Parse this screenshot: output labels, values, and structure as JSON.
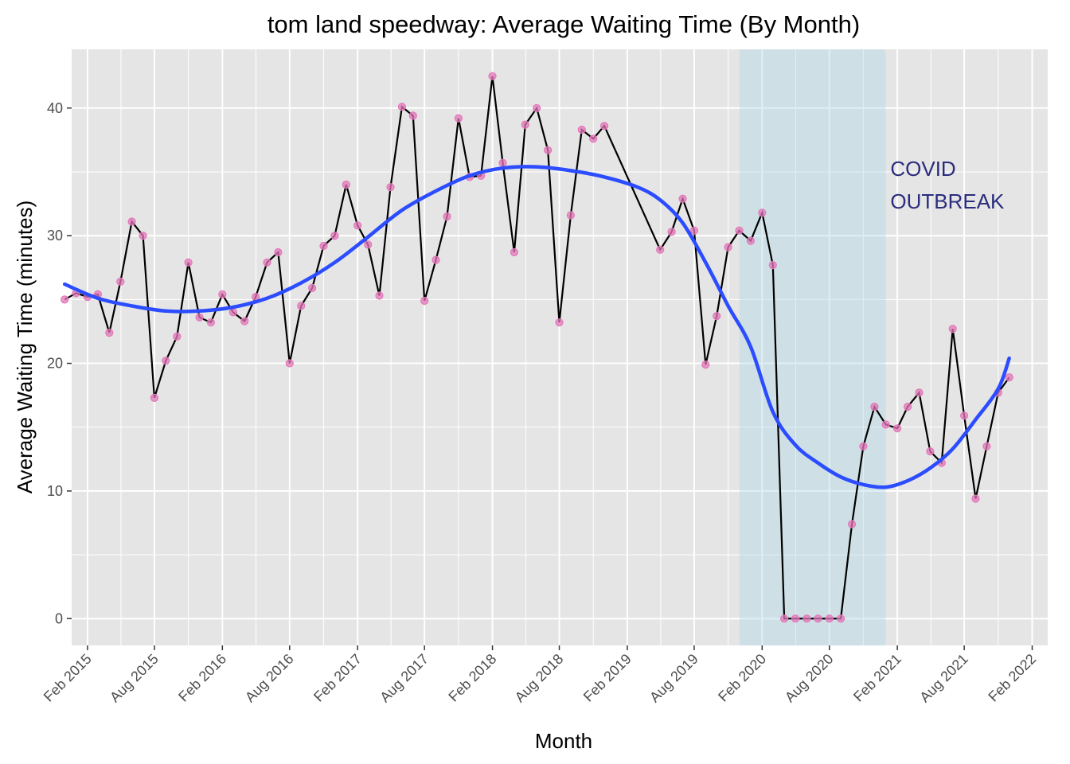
{
  "chart_data": {
    "type": "line",
    "title": "tom land speedway: Average Waiting Time (By Month)",
    "xlabel": "Month",
    "ylabel": "Average Waiting Time (minutes)",
    "x_tick_labels": [
      "Feb 2015",
      "Aug 2015",
      "Feb 2016",
      "Aug 2016",
      "Feb 2017",
      "Aug 2017",
      "Feb 2018",
      "Aug 2018",
      "Feb 2019",
      "Aug 2019",
      "Feb 2020",
      "Aug 2020",
      "Feb 2021",
      "Aug 2021",
      "Feb 2022"
    ],
    "y_ticks": [
      0,
      10,
      20,
      30,
      40
    ],
    "xlim": [
      "2014-12-20",
      "2022-03-15"
    ],
    "ylim": [
      -2.1,
      44.6
    ],
    "grid": true,
    "series": [
      {
        "type": "line+points",
        "line_color": "#000000",
        "point_color": "#e377b9",
        "points": [
          [
            "2014-12-01",
            25.0
          ],
          [
            "2015-01-01",
            25.5
          ],
          [
            "2015-02-01",
            25.2
          ],
          [
            "2015-03-01",
            25.4
          ],
          [
            "2015-04-01",
            22.4
          ],
          [
            "2015-05-01",
            26.4
          ],
          [
            "2015-06-01",
            31.1
          ],
          [
            "2015-07-01",
            30.0
          ],
          [
            "2015-08-01",
            17.3
          ],
          [
            "2015-09-01",
            20.2
          ],
          [
            "2015-10-01",
            22.1
          ],
          [
            "2015-11-01",
            27.9
          ],
          [
            "2015-12-01",
            23.6
          ],
          [
            "2016-01-01",
            23.2
          ],
          [
            "2016-02-01",
            25.4
          ],
          [
            "2016-03-01",
            24.0
          ],
          [
            "2016-04-01",
            23.3
          ],
          [
            "2016-05-01",
            25.2
          ],
          [
            "2016-06-01",
            27.9
          ],
          [
            "2016-07-01",
            28.7
          ],
          [
            "2016-08-01",
            20.0
          ],
          [
            "2016-09-01",
            24.5
          ],
          [
            "2016-10-01",
            25.9
          ],
          [
            "2016-11-01",
            29.2
          ],
          [
            "2016-12-01",
            30.0
          ],
          [
            "2017-01-01",
            34.0
          ],
          [
            "2017-02-01",
            30.8
          ],
          [
            "2017-03-01",
            29.3
          ],
          [
            "2017-04-01",
            25.3
          ],
          [
            "2017-05-01",
            33.8
          ],
          [
            "2017-06-01",
            40.1
          ],
          [
            "2017-07-01",
            39.4
          ],
          [
            "2017-08-01",
            24.9
          ],
          [
            "2017-09-01",
            28.1
          ],
          [
            "2017-10-01",
            31.5
          ],
          [
            "2017-11-01",
            39.2
          ],
          [
            "2017-12-01",
            34.6
          ],
          [
            "2018-01-01",
            34.7
          ],
          [
            "2018-02-01",
            42.5
          ],
          [
            "2018-03-01",
            35.7
          ],
          [
            "2018-04-01",
            28.7
          ],
          [
            "2018-05-01",
            38.7
          ],
          [
            "2018-06-01",
            40.0
          ],
          [
            "2018-07-01",
            36.7
          ],
          [
            "2018-08-01",
            23.2
          ],
          [
            "2018-09-01",
            31.6
          ],
          [
            "2018-10-01",
            38.3
          ],
          [
            "2018-11-01",
            37.6
          ],
          [
            "2018-12-01",
            38.6
          ],
          [
            "2019-05-01",
            28.9
          ],
          [
            "2019-06-01",
            30.3
          ],
          [
            "2019-07-01",
            32.9
          ],
          [
            "2019-08-01",
            30.4
          ],
          [
            "2019-09-01",
            19.9
          ],
          [
            "2019-10-01",
            23.7
          ],
          [
            "2019-11-01",
            29.1
          ],
          [
            "2019-12-01",
            30.4
          ],
          [
            "2020-01-01",
            29.6
          ],
          [
            "2020-02-01",
            31.8
          ],
          [
            "2020-03-01",
            27.7
          ],
          [
            "2020-04-01",
            0.0
          ],
          [
            "2020-05-01",
            0.0
          ],
          [
            "2020-06-01",
            0.0
          ],
          [
            "2020-07-01",
            0.0
          ],
          [
            "2020-08-01",
            0.0
          ],
          [
            "2020-09-01",
            0.0
          ],
          [
            "2020-10-01",
            7.4
          ],
          [
            "2020-11-01",
            13.5
          ],
          [
            "2020-12-01",
            16.6
          ],
          [
            "2021-01-01",
            15.2
          ],
          [
            "2021-02-01",
            14.9
          ],
          [
            "2021-03-01",
            16.6
          ],
          [
            "2021-04-01",
            17.7
          ],
          [
            "2021-05-01",
            13.1
          ],
          [
            "2021-06-01",
            12.2
          ],
          [
            "2021-07-01",
            22.7
          ],
          [
            "2021-08-01",
            15.9
          ],
          [
            "2021-09-01",
            9.4
          ],
          [
            "2021-10-01",
            13.5
          ],
          [
            "2021-11-01",
            17.7
          ],
          [
            "2021-12-01",
            18.9
          ]
        ]
      },
      {
        "type": "smooth",
        "color": "#2b4cff",
        "points": [
          [
            "2014-12-01",
            26.2
          ],
          [
            "2015-03-01",
            25.1
          ],
          [
            "2015-06-01",
            24.5
          ],
          [
            "2015-09-01",
            24.1
          ],
          [
            "2015-12-01",
            24.1
          ],
          [
            "2016-03-01",
            24.4
          ],
          [
            "2016-06-01",
            25.1
          ],
          [
            "2016-09-01",
            26.3
          ],
          [
            "2016-12-01",
            27.9
          ],
          [
            "2017-03-01",
            29.9
          ],
          [
            "2017-06-01",
            32.0
          ],
          [
            "2017-09-01",
            33.5
          ],
          [
            "2017-12-01",
            34.7
          ],
          [
            "2018-03-01",
            35.3
          ],
          [
            "2018-06-01",
            35.4
          ],
          [
            "2018-09-01",
            35.1
          ],
          [
            "2018-12-01",
            34.6
          ],
          [
            "2019-03-01",
            33.8
          ],
          [
            "2019-05-01",
            32.8
          ],
          [
            "2019-07-01",
            31.0
          ],
          [
            "2019-09-01",
            27.9
          ],
          [
            "2019-11-01",
            24.5
          ],
          [
            "2020-01-01",
            21.3
          ],
          [
            "2020-03-01",
            16.2
          ],
          [
            "2020-05-01",
            13.6
          ],
          [
            "2020-07-01",
            12.2
          ],
          [
            "2020-09-01",
            11.1
          ],
          [
            "2020-11-01",
            10.5
          ],
          [
            "2021-01-01",
            10.3
          ],
          [
            "2021-03-01",
            10.8
          ],
          [
            "2021-05-01",
            11.8
          ],
          [
            "2021-07-01",
            13.3
          ],
          [
            "2021-09-01",
            15.6
          ],
          [
            "2021-11-01",
            18.0
          ],
          [
            "2021-12-01",
            20.4
          ]
        ]
      }
    ],
    "shaded_region": {
      "x_start": "2020-01-01",
      "x_end": "2020-12-01",
      "color": "#add8e6",
      "label_lines": [
        "COVID",
        "OUTBREAK"
      ],
      "label_color": "#2b2d7c"
    },
    "colors": {
      "panel_background": "#e5e5e5",
      "grid": "#ffffff"
    }
  }
}
